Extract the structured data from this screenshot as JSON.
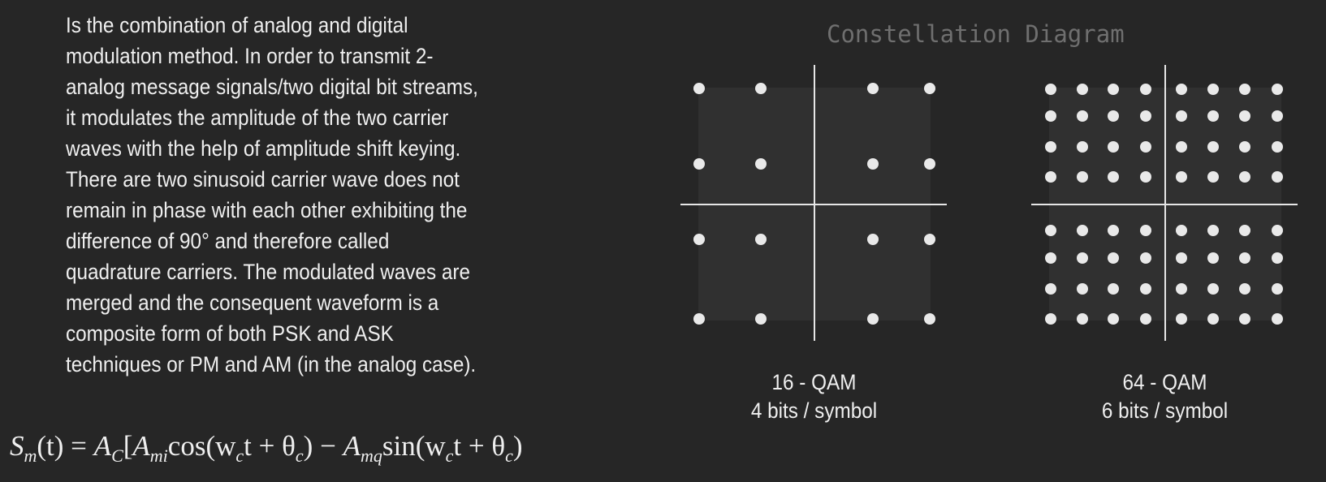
{
  "description_lines": [
    "Is the combination of analog and digital",
    "modulation method. In order to transmit 2-",
    "analog message signals/two digital bit streams,",
    "it modulates the amplitude of the two carrier",
    "waves with the help of amplitude shift keying.",
    "There are two sinusoid carrier wave does not",
    "remain in phase with each other exhibiting the",
    "difference of 90° and therefore called",
    "quadrature carriers. The modulated waves are",
    "merged and the consequent waveform is a",
    "composite form of both PSK and ASK",
    "techniques or PM and AM (in the analog case)."
  ],
  "formula": {
    "lhs": "S",
    "lhs_sub": "m",
    "arg_t": "(t) = ",
    "A": "A",
    "A_sub": "C",
    "bracket": "[",
    "Ami_sub": "mi",
    "cos": "cos",
    "arg1": "(w",
    "w_sub": "c",
    "t_plus": "t + θ",
    "theta_sub": "c",
    "close": ")",
    "minus": " − ",
    "Amq_sub": "mq",
    "sin": "sin"
  },
  "diagram_title": "Constellation Diagram",
  "constellations": [
    {
      "id": "qam16",
      "label": "16 - QAM",
      "sublabel": "4 bits / symbol",
      "grid": 4
    },
    {
      "id": "qam64",
      "label": "64 - QAM",
      "sublabel": "6 bits / symbol",
      "grid": 8
    }
  ],
  "colors": {
    "background": "#262626",
    "text": "#efefef",
    "title": "#6f6f6f",
    "square": "#303030",
    "axes": "#e6e6e6",
    "dots": "#e9e9e9"
  }
}
